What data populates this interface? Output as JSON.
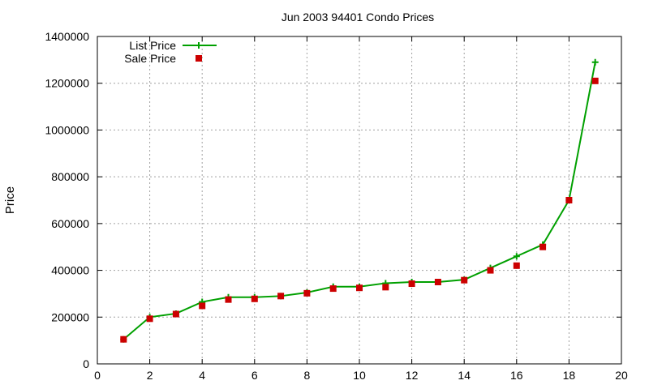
{
  "chart_data": {
    "type": "line",
    "title": "Jun 2003 94401 Condo Prices",
    "xlabel": "",
    "ylabel": "Price",
    "xlim": [
      0,
      20
    ],
    "ylim": [
      0,
      1400000
    ],
    "xticks": [
      0,
      2,
      4,
      6,
      8,
      10,
      12,
      14,
      16,
      18,
      20
    ],
    "yticks": [
      0,
      200000,
      400000,
      600000,
      800000,
      1000000,
      1200000,
      1400000
    ],
    "grid": true,
    "legend": "top-left",
    "x": [
      1,
      2,
      3,
      4,
      5,
      6,
      7,
      8,
      9,
      10,
      11,
      12,
      13,
      14,
      15,
      16,
      17,
      18,
      19
    ],
    "series": [
      {
        "name": "List Price",
        "style": "line-plus",
        "color": "#00a000",
        "values": [
          105000,
          200000,
          215000,
          265000,
          285000,
          285000,
          290000,
          305000,
          330000,
          330000,
          345000,
          350000,
          350000,
          360000,
          410000,
          460000,
          510000,
          700000,
          1290000
        ]
      },
      {
        "name": "Sale Price",
        "style": "square-points",
        "color": "#cc0000",
        "values": [
          105000,
          193000,
          213000,
          248000,
          275000,
          278000,
          290000,
          302000,
          322000,
          325000,
          328000,
          343000,
          350000,
          358000,
          400000,
          420000,
          500000,
          700000,
          1210000
        ]
      }
    ]
  }
}
